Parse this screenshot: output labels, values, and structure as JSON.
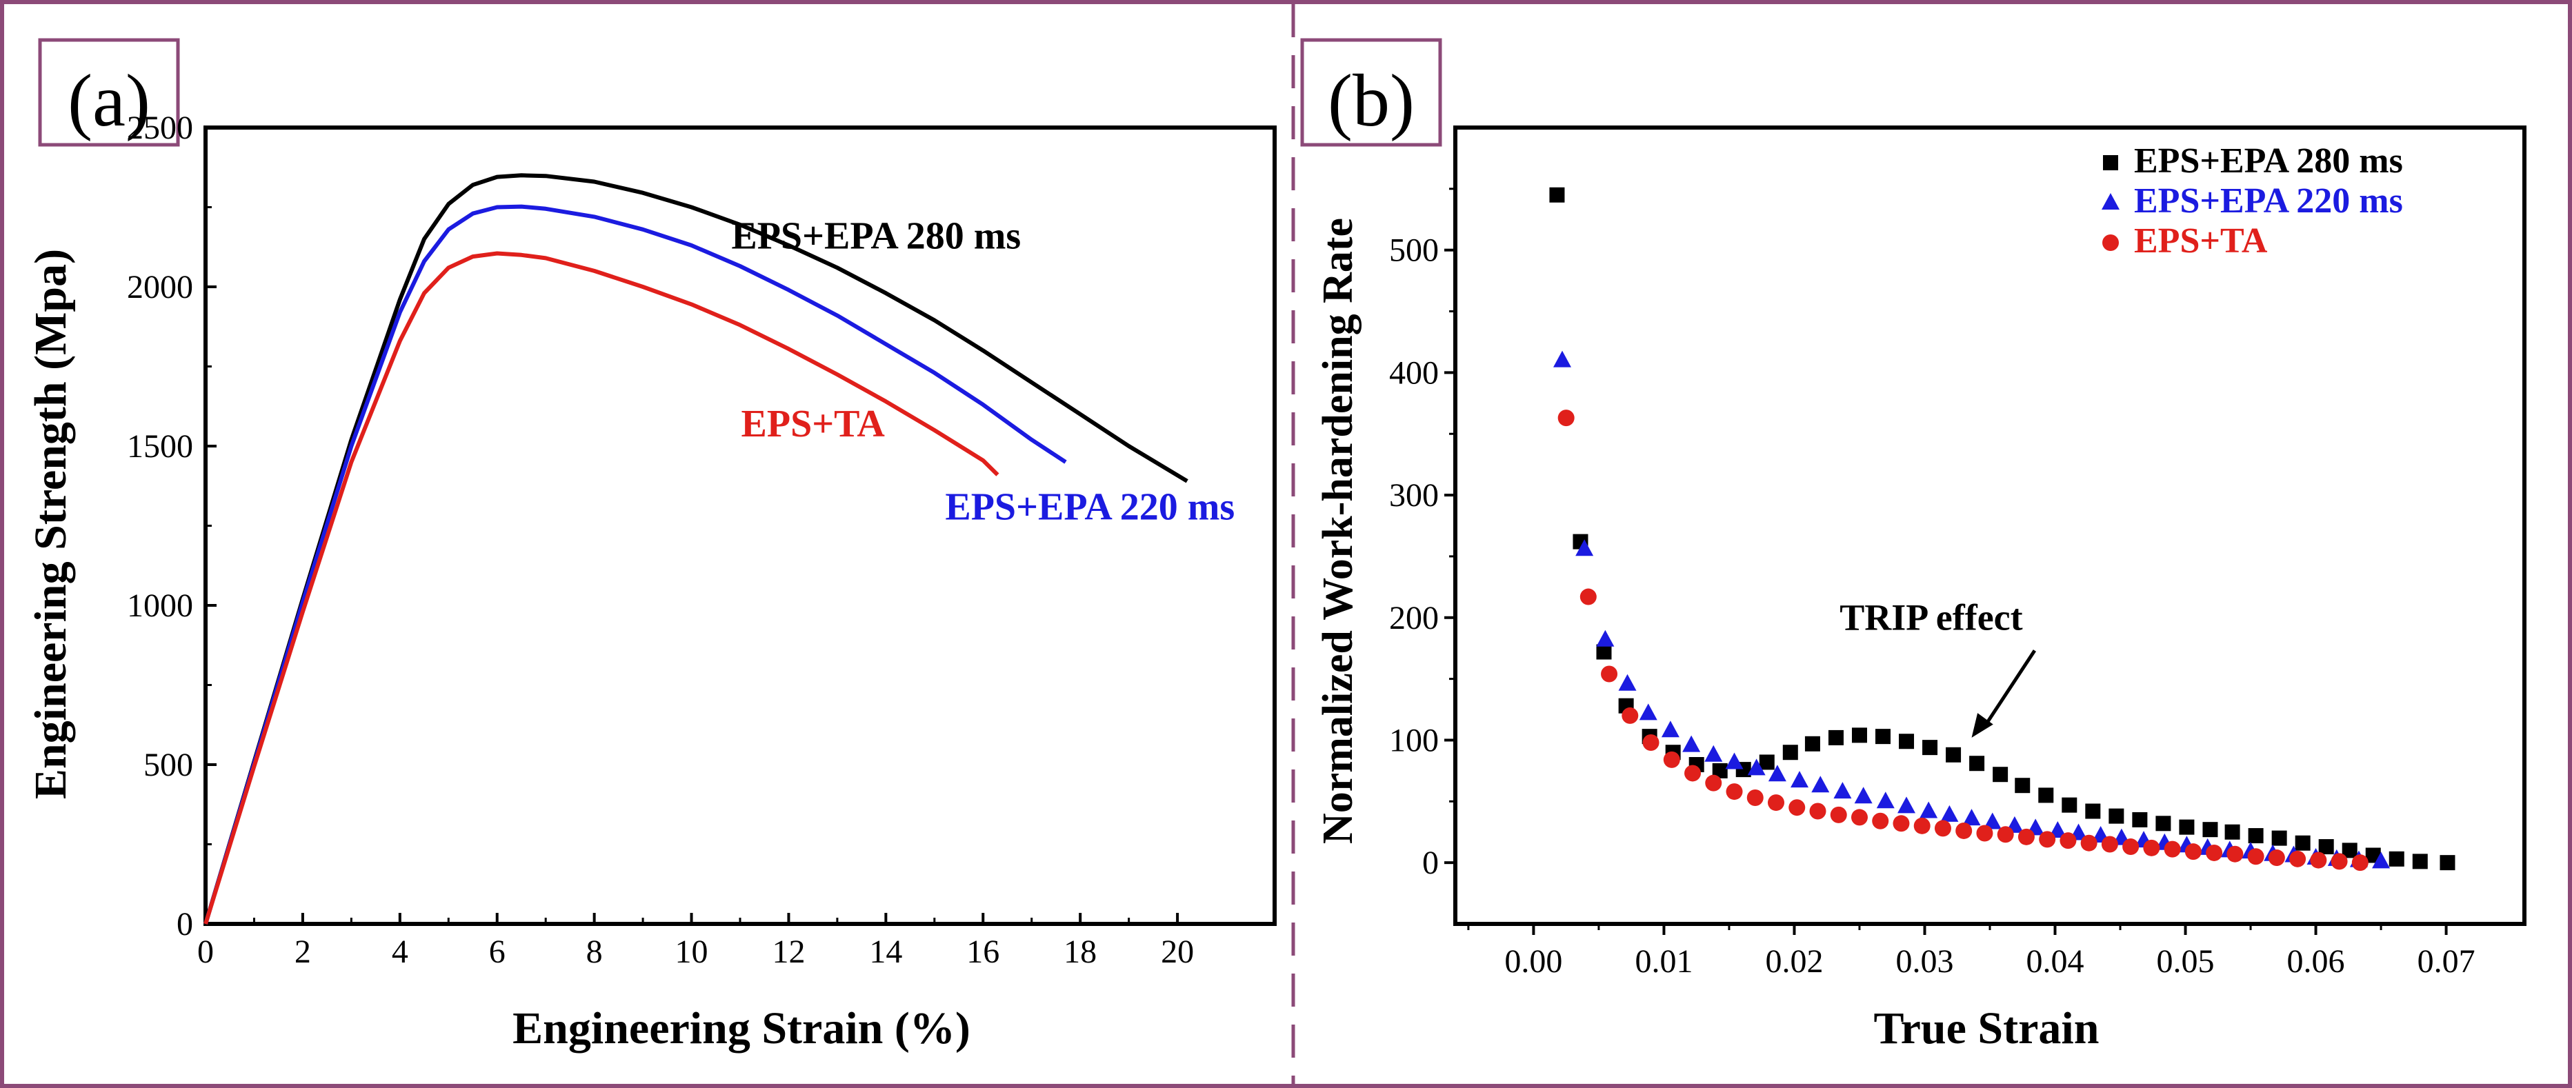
{
  "chart_data": [
    {
      "type": "line",
      "panel_label": "(a)",
      "xlabel": "Engineering Strain (%)",
      "ylabel": "Engineering Strength (Mpa)",
      "xlim": [
        0,
        22
      ],
      "ylim": [
        0,
        2500
      ],
      "xticks": [
        0,
        2,
        4,
        6,
        8,
        10,
        12,
        14,
        16,
        18,
        20
      ],
      "yticks": [
        0,
        500,
        1000,
        1500,
        2000,
        2500
      ],
      "series": [
        {
          "name": "EPS+EPA 280 ms",
          "color": "#000000",
          "x": [
            0,
            1,
            2,
            3,
            4,
            4.5,
            5,
            5.5,
            6,
            6.5,
            7,
            8,
            9,
            10,
            11,
            12,
            13,
            14,
            15,
            16,
            17,
            18,
            19,
            20.2
          ],
          "y": [
            0,
            510,
            1020,
            1520,
            1960,
            2150,
            2260,
            2320,
            2345,
            2350,
            2348,
            2330,
            2295,
            2250,
            2195,
            2130,
            2060,
            1980,
            1895,
            1800,
            1700,
            1600,
            1500,
            1390
          ]
        },
        {
          "name": "EPS+EPA 220 ms",
          "color": "#1b1be0",
          "x": [
            0,
            1,
            2,
            3,
            4,
            4.5,
            5,
            5.5,
            6,
            6.5,
            7,
            8,
            9,
            10,
            11,
            12,
            13,
            14,
            15,
            16,
            17,
            17.7
          ],
          "y": [
            0,
            505,
            1010,
            1500,
            1920,
            2080,
            2180,
            2230,
            2250,
            2252,
            2245,
            2220,
            2180,
            2130,
            2065,
            1990,
            1910,
            1820,
            1730,
            1630,
            1520,
            1450
          ]
        },
        {
          "name": "EPS+TA",
          "color": "#e0201b",
          "x": [
            0,
            1,
            2,
            3,
            4,
            4.5,
            5,
            5.5,
            6,
            6.5,
            7,
            8,
            9,
            10,
            11,
            12,
            13,
            14,
            15,
            16,
            16.3
          ],
          "y": [
            0,
            495,
            980,
            1450,
            1830,
            1980,
            2060,
            2095,
            2105,
            2100,
            2090,
            2050,
            2000,
            1945,
            1880,
            1805,
            1725,
            1640,
            1550,
            1455,
            1410
          ]
        }
      ],
      "annotations": [
        {
          "text": "EPS+EPA 280 ms",
          "color": "#000000",
          "x": 13.8,
          "y": 2120
        },
        {
          "text": "EPS+TA",
          "color": "#e0201b",
          "x": 12.5,
          "y": 1530
        },
        {
          "text": "EPS+EPA 220 ms",
          "color": "#1b1be0",
          "x": 18.2,
          "y": 1270
        }
      ]
    },
    {
      "type": "scatter",
      "panel_label": "(b)",
      "xlabel": "True Strain",
      "ylabel": "Normalized Work-hardening Rate",
      "xlim": [
        -0.006,
        0.076
      ],
      "ylim": [
        -50,
        600
      ],
      "xticks": [
        0.0,
        0.01,
        0.02,
        0.03,
        0.04,
        0.05,
        0.06,
        0.07
      ],
      "xtick_labels": [
        "0.00",
        "0.01",
        "0.02",
        "0.03",
        "0.04",
        "0.05",
        "0.06",
        "0.07"
      ],
      "yticks": [
        0,
        100,
        200,
        300,
        400,
        500
      ],
      "legend_position": "top-right",
      "series": [
        {
          "name": "EPS+EPA 280 ms",
          "marker": "square",
          "color": "#000000",
          "x": [
            0.0018,
            0.0036,
            0.0054,
            0.0071,
            0.0089,
            0.0107,
            0.0125,
            0.0143,
            0.0161,
            0.0179,
            0.0197,
            0.0214,
            0.0232,
            0.025,
            0.0268,
            0.0286,
            0.0304,
            0.0322,
            0.034,
            0.0358,
            0.0375,
            0.0393,
            0.0411,
            0.0429,
            0.0447,
            0.0465,
            0.0483,
            0.0501,
            0.0519,
            0.0536,
            0.0554,
            0.0572,
            0.059,
            0.0608,
            0.0626,
            0.0644,
            0.0662,
            0.068,
            0.0701
          ],
          "y": [
            545,
            262,
            172,
            128,
            103,
            90,
            80,
            75,
            76,
            82,
            90,
            97,
            102,
            104,
            103,
            99,
            94,
            88,
            81,
            72,
            63,
            55,
            47,
            42,
            38,
            35,
            32,
            29,
            27,
            25,
            22,
            20,
            16,
            13,
            10,
            6,
            3,
            1,
            0
          ]
        },
        {
          "name": "EPS+EPA 220 ms",
          "marker": "triangle",
          "color": "#1b1be0",
          "x": [
            0.0022,
            0.0039,
            0.0055,
            0.0072,
            0.0088,
            0.0105,
            0.0121,
            0.0138,
            0.0154,
            0.0171,
            0.0187,
            0.0204,
            0.022,
            0.0237,
            0.0253,
            0.027,
            0.0286,
            0.0303,
            0.0319,
            0.0336,
            0.0352,
            0.0369,
            0.0385,
            0.0402,
            0.0418,
            0.0435,
            0.0451,
            0.0468,
            0.0484,
            0.0501,
            0.0517,
            0.0534,
            0.055,
            0.0567,
            0.0583,
            0.06,
            0.0616,
            0.0633,
            0.065
          ],
          "y": [
            410,
            256,
            182,
            146,
            122,
            108,
            96,
            88,
            82,
            77,
            72,
            67,
            63,
            58,
            54,
            50,
            46,
            42,
            39,
            36,
            33,
            30,
            28,
            26,
            24,
            22,
            20,
            18,
            16,
            14,
            12,
            10,
            9,
            7,
            6,
            4,
            3,
            2,
            1
          ]
        },
        {
          "name": "EPS+TA",
          "marker": "circle",
          "color": "#e0201b",
          "x": [
            0.0025,
            0.0042,
            0.0058,
            0.0074,
            0.009,
            0.0106,
            0.0122,
            0.0138,
            0.0154,
            0.017,
            0.0186,
            0.0202,
            0.0218,
            0.0234,
            0.025,
            0.0266,
            0.0282,
            0.0298,
            0.0314,
            0.033,
            0.0346,
            0.0362,
            0.0378,
            0.0394,
            0.041,
            0.0426,
            0.0442,
            0.0458,
            0.0474,
            0.049,
            0.0506,
            0.0522,
            0.0538,
            0.0554,
            0.057,
            0.0586,
            0.0602,
            0.0618,
            0.0634
          ],
          "y": [
            363,
            217,
            154,
            120,
            98,
            84,
            73,
            65,
            58,
            53,
            49,
            45,
            42,
            39,
            37,
            34,
            32,
            30,
            28,
            26,
            24,
            23,
            21,
            19,
            18,
            16,
            15,
            13,
            12,
            11,
            9,
            8,
            7,
            5,
            4,
            3,
            2,
            1,
            0
          ]
        }
      ],
      "annotations": [
        {
          "text": "TRIP effect",
          "color": "#000000",
          "x": 0.0305,
          "y": 190,
          "arrow_to": [
            0.0218,
            99
          ]
        }
      ]
    }
  ]
}
